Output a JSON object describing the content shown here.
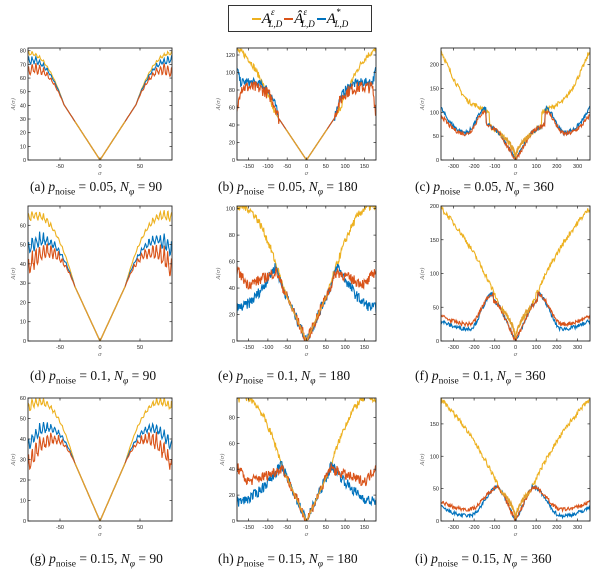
{
  "legend": {
    "entries": [
      {
        "name": "A",
        "sup": "ε",
        "sub": "L,D",
        "hat": false,
        "color": "#EDB120"
      },
      {
        "name": "Â",
        "sup": "ε",
        "sub": "L,D",
        "hat": true,
        "color": "#D95319"
      },
      {
        "name": "A",
        "sup": "*",
        "sub": "L,D",
        "hat": false,
        "color": "#0072BD"
      }
    ]
  },
  "colors": {
    "eps": "#EDB120",
    "hat": "#D95319",
    "star": "#0072BD",
    "axis": "#262626"
  },
  "chart_data": [
    {
      "id": "a",
      "type": "line",
      "caption_prefix": "(a)",
      "p_noise": "0.05",
      "N_phi": "90",
      "xlabel": "σ",
      "ylabel": "A(σ)",
      "xlim": [
        -90,
        90
      ],
      "ylim": [
        0,
        82
      ],
      "xticks": [
        -50,
        0,
        50
      ],
      "yticks": [
        0,
        10,
        20,
        30,
        40,
        50,
        60,
        70,
        80
      ],
      "series": [
        {
          "name": "A^ε_{L,D}",
          "peak_edge": 80,
          "mid": "linear"
        },
        {
          "name": "Â^ε_{L,D}",
          "peak_edge": 75,
          "osc": 12
        },
        {
          "name": "A^*_{L,D}",
          "peak_edge": 78,
          "osc": 4
        }
      ]
    },
    {
      "id": "b",
      "type": "line",
      "caption_prefix": "(b)",
      "p_noise": "0.05",
      "N_phi": "180",
      "xlabel": "σ",
      "ylabel": "A(σ)",
      "xlim": [
        -180,
        180
      ],
      "ylim": [
        0,
        128
      ],
      "xticks": [
        -150,
        -100,
        -50,
        0,
        50,
        100,
        150
      ],
      "yticks": [
        0,
        20,
        40,
        60,
        80,
        100,
        120
      ],
      "series": [
        {
          "name": "A^ε_{L,D}",
          "edge": 125
        },
        {
          "name": "Â^ε_{L,D}",
          "plateau": 82
        },
        {
          "name": "A^*_{L,D}",
          "plateau": 88
        }
      ]
    },
    {
      "id": "c",
      "type": "line",
      "caption_prefix": "(c)",
      "p_noise": "0.05",
      "N_phi": "360",
      "xlabel": "σ",
      "ylabel": "A(σ)",
      "xlim": [
        -360,
        360
      ],
      "ylim": [
        0,
        235
      ],
      "xticks": [
        -300,
        -200,
        -100,
        0,
        100,
        200,
        300
      ],
      "yticks": [
        0,
        50,
        100,
        150,
        200
      ],
      "series": [
        {
          "name": "A^ε_{L,D}",
          "edge": 230
        },
        {
          "name": "Â^ε_{L,D}",
          "hump": 105,
          "dip": 55
        },
        {
          "name": "A^*_{L,D}",
          "hump": 110,
          "dip": 58
        }
      ]
    },
    {
      "id": "d",
      "type": "line",
      "caption_prefix": "(d)",
      "p_noise": "0.1",
      "N_phi": "90",
      "xlabel": "σ",
      "ylabel": "A(σ)",
      "xlim": [
        -90,
        90
      ],
      "ylim": [
        0,
        70
      ],
      "xticks": [
        -50,
        0,
        50
      ],
      "yticks": [
        0,
        10,
        20,
        30,
        40,
        50,
        60
      ],
      "series": [
        {
          "name": "A^ε_{L,D}",
          "edge": 68
        },
        {
          "name": "Â^ε_{L,D}",
          "edge": 45
        },
        {
          "name": "A^*_{L,D}",
          "edge": 52
        }
      ]
    },
    {
      "id": "e",
      "type": "line",
      "caption_prefix": "(e)",
      "p_noise": "0.1",
      "N_phi": "180",
      "xlabel": "σ",
      "ylabel": "A(σ)",
      "xlim": [
        -180,
        180
      ],
      "ylim": [
        0,
        102
      ],
      "xticks": [
        -150,
        -100,
        -50,
        0,
        50,
        100,
        150
      ],
      "yticks": [
        0,
        20,
        40,
        60,
        80,
        100
      ],
      "series": [
        {
          "name": "A^ε_{L,D}",
          "edge": 100
        },
        {
          "name": "Â^ε_{L,D}",
          "hump": 52,
          "edge": 42
        },
        {
          "name": "A^*_{L,D}",
          "hump": 56,
          "edge": 25
        }
      ]
    },
    {
      "id": "f",
      "type": "line",
      "caption_prefix": "(f)",
      "p_noise": "0.1",
      "N_phi": "360",
      "xlabel": "σ",
      "ylabel": "A(σ)",
      "xlim": [
        -360,
        360
      ],
      "ylim": [
        0,
        200
      ],
      "xticks": [
        -300,
        -200,
        -100,
        0,
        100,
        200,
        300
      ],
      "yticks": [
        0,
        50,
        100,
        150,
        200
      ],
      "series": [
        {
          "name": "A^ε_{L,D}",
          "edge": 195
        },
        {
          "name": "Â^ε_{L,D}",
          "hump": 70,
          "dip": 25
        },
        {
          "name": "A^*_{L,D}",
          "hump": 70,
          "dip": 18
        }
      ]
    },
    {
      "id": "g",
      "type": "line",
      "caption_prefix": "(g)",
      "p_noise": "0.15",
      "N_phi": "90",
      "xlabel": "σ",
      "ylabel": "A(σ)",
      "xlim": [
        -90,
        90
      ],
      "ylim": [
        0,
        60
      ],
      "xticks": [
        -50,
        0,
        50
      ],
      "yticks": [
        0,
        10,
        20,
        30,
        40,
        50,
        60
      ],
      "series": [
        {
          "name": "A^ε_{L,D}",
          "edge": 58
        },
        {
          "name": "Â^ε_{L,D}",
          "edge": 30
        },
        {
          "name": "A^*_{L,D}",
          "edge": 40
        }
      ]
    },
    {
      "id": "h",
      "type": "line",
      "caption_prefix": "(h)",
      "p_noise": "0.15",
      "N_phi": "180",
      "xlabel": "σ",
      "ylabel": "A(σ)",
      "xlim": [
        -180,
        180
      ],
      "ylim": [
        0,
        95
      ],
      "xticks": [
        -150,
        -100,
        -50,
        0,
        50,
        100,
        150
      ],
      "yticks": [
        0,
        20,
        40,
        60,
        80
      ],
      "series": [
        {
          "name": "A^ε_{L,D}",
          "edge": 93
        },
        {
          "name": "Â^ε_{L,D}",
          "hump": 40,
          "edge": 30
        },
        {
          "name": "A^*_{L,D}",
          "hump": 42,
          "edge": 15
        }
      ]
    },
    {
      "id": "i",
      "type": "line",
      "caption_prefix": "(i)",
      "p_noise": "0.15",
      "N_phi": "360",
      "xlabel": "σ",
      "ylabel": "A(σ)",
      "xlim": [
        -360,
        360
      ],
      "ylim": [
        0,
        190
      ],
      "xticks": [
        -300,
        -200,
        -100,
        0,
        100,
        200,
        300
      ],
      "yticks": [
        0,
        50,
        100,
        150
      ],
      "series": [
        {
          "name": "A^ε_{L,D}",
          "edge": 188
        },
        {
          "name": "Â^ε_{L,D}",
          "hump": 53,
          "dip": 18
        },
        {
          "name": "A^*_{L,D}",
          "hump": 53,
          "dip": 8
        }
      ]
    }
  ]
}
